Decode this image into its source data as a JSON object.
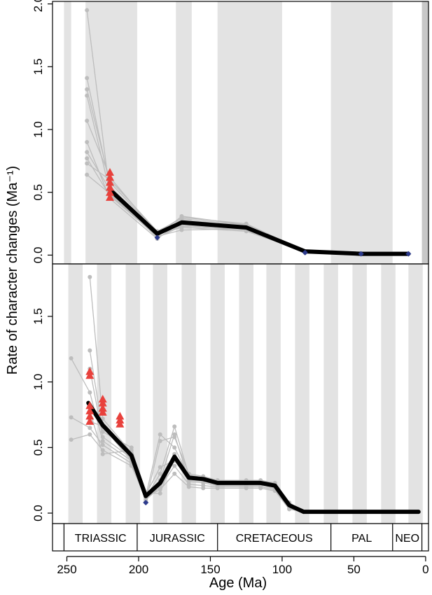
{
  "chart_data": {
    "type": "line",
    "y_axis_title": "Rate of character changes (Ma⁻¹)",
    "x_axis_title": "Age (Ma)",
    "x_ticks": [
      250,
      200,
      150,
      100,
      50,
      0
    ],
    "x_range": [
      260,
      -2
    ],
    "colors": {
      "band": "#e3e3e3",
      "band_dark": "#c8c8c8",
      "sample": "#bdbdbd",
      "mean": "#000000",
      "tip_marker": "#e8413c",
      "node_marker": "#2c3a8c"
    },
    "periods": [
      {
        "label": "TRIASSIC",
        "start": 252,
        "end": 201
      },
      {
        "label": "JURASSIC",
        "start": 201,
        "end": 145
      },
      {
        "label": "CRETACEOUS",
        "start": 145,
        "end": 66
      },
      {
        "label": "PAL",
        "start": 66,
        "end": 23
      },
      {
        "label": "NEO",
        "start": 23,
        "end": 2.6
      }
    ],
    "panels": [
      {
        "id": "top",
        "y_range": [
          -0.07,
          2.02
        ],
        "y_ticks": [
          "0.0",
          "0.5",
          "1.0",
          "1.5",
          "2.0"
        ],
        "y_tick_values": [
          0,
          0.5,
          1.0,
          1.5,
          2.0
        ],
        "bands": [
          [
            252,
            247
          ],
          [
            237,
            201
          ],
          [
            174,
            163
          ],
          [
            145,
            100
          ],
          [
            66,
            23
          ],
          [
            2.6,
            -2
          ]
        ],
        "band_dark_index": 5,
        "mean": {
          "x": [
            220,
            187,
            170,
            125,
            84,
            45,
            12
          ],
          "y": [
            0.52,
            0.17,
            0.26,
            0.22,
            0.03,
            0.01,
            0.01
          ]
        },
        "samples": [
          {
            "x": [
              236,
              220,
              187,
              170,
              125,
              84,
              45,
              12
            ],
            "y": [
              1.95,
              0.48,
              0.15,
              0.31,
              0.24,
              0.02,
              0.01,
              0.01
            ]
          },
          {
            "x": [
              236,
              220,
              187,
              170,
              125,
              84,
              45,
              12
            ],
            "y": [
              1.41,
              0.55,
              0.16,
              0.28,
              0.23,
              0.03,
              0.01,
              0.01
            ]
          },
          {
            "x": [
              236,
              220,
              187,
              170,
              125,
              84,
              45,
              12
            ],
            "y": [
              1.32,
              0.58,
              0.18,
              0.3,
              0.25,
              0.03,
              0.01,
              0.01
            ]
          },
          {
            "x": [
              236,
              220,
              187,
              170,
              125,
              84,
              45,
              12
            ],
            "y": [
              1.27,
              0.5,
              0.14,
              0.24,
              0.2,
              0.02,
              0.01,
              0.01
            ]
          },
          {
            "x": [
              236,
              220,
              187,
              170,
              125,
              84,
              45,
              12
            ],
            "y": [
              1.07,
              0.62,
              0.17,
              0.22,
              0.19,
              0.03,
              0.01,
              0.01
            ]
          },
          {
            "x": [
              236,
              220,
              187,
              170,
              125,
              84,
              45,
              12
            ],
            "y": [
              0.9,
              0.45,
              0.13,
              0.27,
              0.22,
              0.02,
              0.01,
              0.01
            ]
          },
          {
            "x": [
              236,
              220,
              187,
              170,
              125,
              84,
              45,
              12
            ],
            "y": [
              0.82,
              0.52,
              0.16,
              0.25,
              0.23,
              0.03,
              0.01,
              0.01
            ]
          },
          {
            "x": [
              236,
              220,
              187,
              170,
              125,
              84,
              45,
              12
            ],
            "y": [
              0.77,
              0.47,
              0.15,
              0.2,
              0.21,
              0.02,
              0.01,
              0.01
            ]
          },
          {
            "x": [
              236,
              220,
              187,
              170,
              125,
              84,
              45,
              12
            ],
            "y": [
              0.73,
              0.6,
              0.19,
              0.29,
              0.24,
              0.03,
              0.01,
              0.01
            ]
          },
          {
            "x": [
              236,
              220,
              187,
              170,
              125,
              84,
              45,
              12
            ],
            "y": [
              0.64,
              0.49,
              0.14,
              0.23,
              0.2,
              0.02,
              0.01,
              0.01
            ]
          }
        ],
        "tip_markers": [
          {
            "x": 220,
            "y": 0.66
          },
          {
            "x": 220,
            "y": 0.62
          },
          {
            "x": 220,
            "y": 0.58
          },
          {
            "x": 220,
            "y": 0.54
          },
          {
            "x": 220,
            "y": 0.5
          },
          {
            "x": 220,
            "y": 0.46
          }
        ],
        "node_markers": [
          {
            "x": 187,
            "y": 0.14
          },
          {
            "x": 84,
            "y": 0.02
          },
          {
            "x": 45,
            "y": 0.01
          },
          {
            "x": 12,
            "y": 0.01
          }
        ]
      },
      {
        "id": "bottom",
        "y_range": [
          -0.08,
          1.9
        ],
        "y_ticks": [
          "0.0",
          "0.5",
          "1.0",
          "1.5"
        ],
        "y_tick_values": [
          0,
          0.5,
          1.0,
          1.5
        ],
        "bands": [
          [
            249,
            239
          ],
          [
            229,
            219
          ],
          [
            209,
            199
          ],
          [
            190,
            180
          ],
          [
            170,
            160
          ],
          [
            150,
            140
          ],
          [
            130,
            120
          ],
          [
            111,
            101
          ],
          [
            91,
            81
          ],
          [
            71,
            61
          ],
          [
            51,
            41
          ],
          [
            31,
            21
          ],
          [
            12,
            2
          ]
        ],
        "mean": {
          "x": [
            235,
            225,
            205,
            195,
            185,
            175,
            165,
            155,
            145,
            125,
            115,
            105,
            95,
            85,
            45,
            5
          ],
          "y": [
            0.84,
            0.67,
            0.44,
            0.13,
            0.23,
            0.43,
            0.27,
            0.26,
            0.23,
            0.23,
            0.23,
            0.21,
            0.06,
            0.01,
            0.01,
            0.01
          ]
        },
        "samples": [
          {
            "x": [
              234,
              225,
              205,
              195,
              185,
              175,
              165,
              155,
              145,
              125,
              115,
              105,
              95,
              85,
              45,
              5
            ],
            "y": [
              1.8,
              0.72,
              0.46,
              0.12,
              0.3,
              0.66,
              0.29,
              0.27,
              0.24,
              0.24,
              0.24,
              0.22,
              0.07,
              0.01,
              0.01,
              0.01
            ]
          },
          {
            "x": [
              234,
              225,
              205,
              195,
              185,
              175,
              165,
              155,
              145,
              125,
              115,
              105,
              95,
              85,
              45,
              5
            ],
            "y": [
              1.24,
              0.62,
              0.5,
              0.13,
              0.6,
              0.5,
              0.28,
              0.26,
              0.23,
              0.23,
              0.23,
              0.21,
              0.05,
              0.01,
              0.01,
              0.01
            ]
          },
          {
            "x": [
              234,
              225,
              205,
              195,
              185,
              175,
              165,
              155,
              145,
              125,
              115,
              105,
              95,
              85,
              45,
              5
            ],
            "y": [
              1.1,
              0.58,
              0.42,
              0.14,
              0.35,
              0.4,
              0.26,
              0.25,
              0.22,
              0.22,
              0.22,
              0.2,
              0.06,
              0.01,
              0.01,
              0.01
            ]
          },
          {
            "x": [
              247,
              234,
              225,
              205,
              195,
              185,
              175,
              165,
              155,
              145,
              125,
              115,
              105,
              95,
              85,
              45,
              5
            ],
            "y": [
              1.18,
              0.92,
              0.55,
              0.4,
              0.11,
              0.25,
              0.6,
              0.25,
              0.24,
              0.22,
              0.22,
              0.22,
              0.2,
              0.04,
              0.01,
              0.01,
              0.01
            ]
          },
          {
            "x": [
              247,
              234,
              225,
              205,
              195,
              185,
              175,
              165,
              155,
              145,
              125,
              115,
              105,
              95,
              85,
              45,
              5
            ],
            "y": [
              0.73,
              0.65,
              0.52,
              0.38,
              0.1,
              0.2,
              0.36,
              0.22,
              0.21,
              0.2,
              0.2,
              0.2,
              0.18,
              0.03,
              0.01,
              0.01,
              0.01
            ]
          },
          {
            "x": [
              247,
              234,
              225,
              205,
              195,
              185,
              175,
              165,
              155,
              145,
              125,
              115,
              105,
              95,
              85,
              45,
              5
            ],
            "y": [
              0.56,
              0.6,
              0.48,
              0.36,
              0.12,
              0.18,
              0.3,
              0.2,
              0.19,
              0.19,
              0.19,
              0.19,
              0.17,
              0.03,
              0.01,
              0.01,
              0.01
            ]
          },
          {
            "x": [
              234,
              225,
              205,
              195,
              185,
              175,
              165,
              155,
              145,
              125,
              115,
              105,
              95,
              85,
              45,
              5
            ],
            "y": [
              0.78,
              0.45,
              0.48,
              0.09,
              0.55,
              0.58,
              0.3,
              0.28,
              0.25,
              0.25,
              0.25,
              0.23,
              0.08,
              0.01,
              0.01,
              0.01
            ]
          },
          {
            "x": [
              234,
              225,
              205,
              195,
              185,
              175,
              165,
              155,
              145,
              125,
              115,
              105,
              95,
              85,
              45,
              5
            ],
            "y": [
              0.7,
              0.66,
              0.4,
              0.15,
              0.15,
              0.45,
              0.24,
              0.23,
              0.21,
              0.21,
              0.21,
              0.19,
              0.04,
              0.01,
              0.01,
              0.01
            ]
          }
        ],
        "tip_markers": [
          {
            "x": 234,
            "y": 1.08
          },
          {
            "x": 234,
            "y": 1.05
          },
          {
            "x": 234,
            "y": 0.82
          },
          {
            "x": 234,
            "y": 0.78
          },
          {
            "x": 234,
            "y": 0.74
          },
          {
            "x": 234,
            "y": 0.7
          },
          {
            "x": 225,
            "y": 0.87
          },
          {
            "x": 225,
            "y": 0.84
          },
          {
            "x": 225,
            "y": 0.8
          },
          {
            "x": 225,
            "y": 0.77
          },
          {
            "x": 213,
            "y": 0.74
          },
          {
            "x": 213,
            "y": 0.71
          },
          {
            "x": 213,
            "y": 0.68
          }
        ],
        "node_markers": [
          {
            "x": 195,
            "y": 0.08
          }
        ]
      }
    ]
  }
}
